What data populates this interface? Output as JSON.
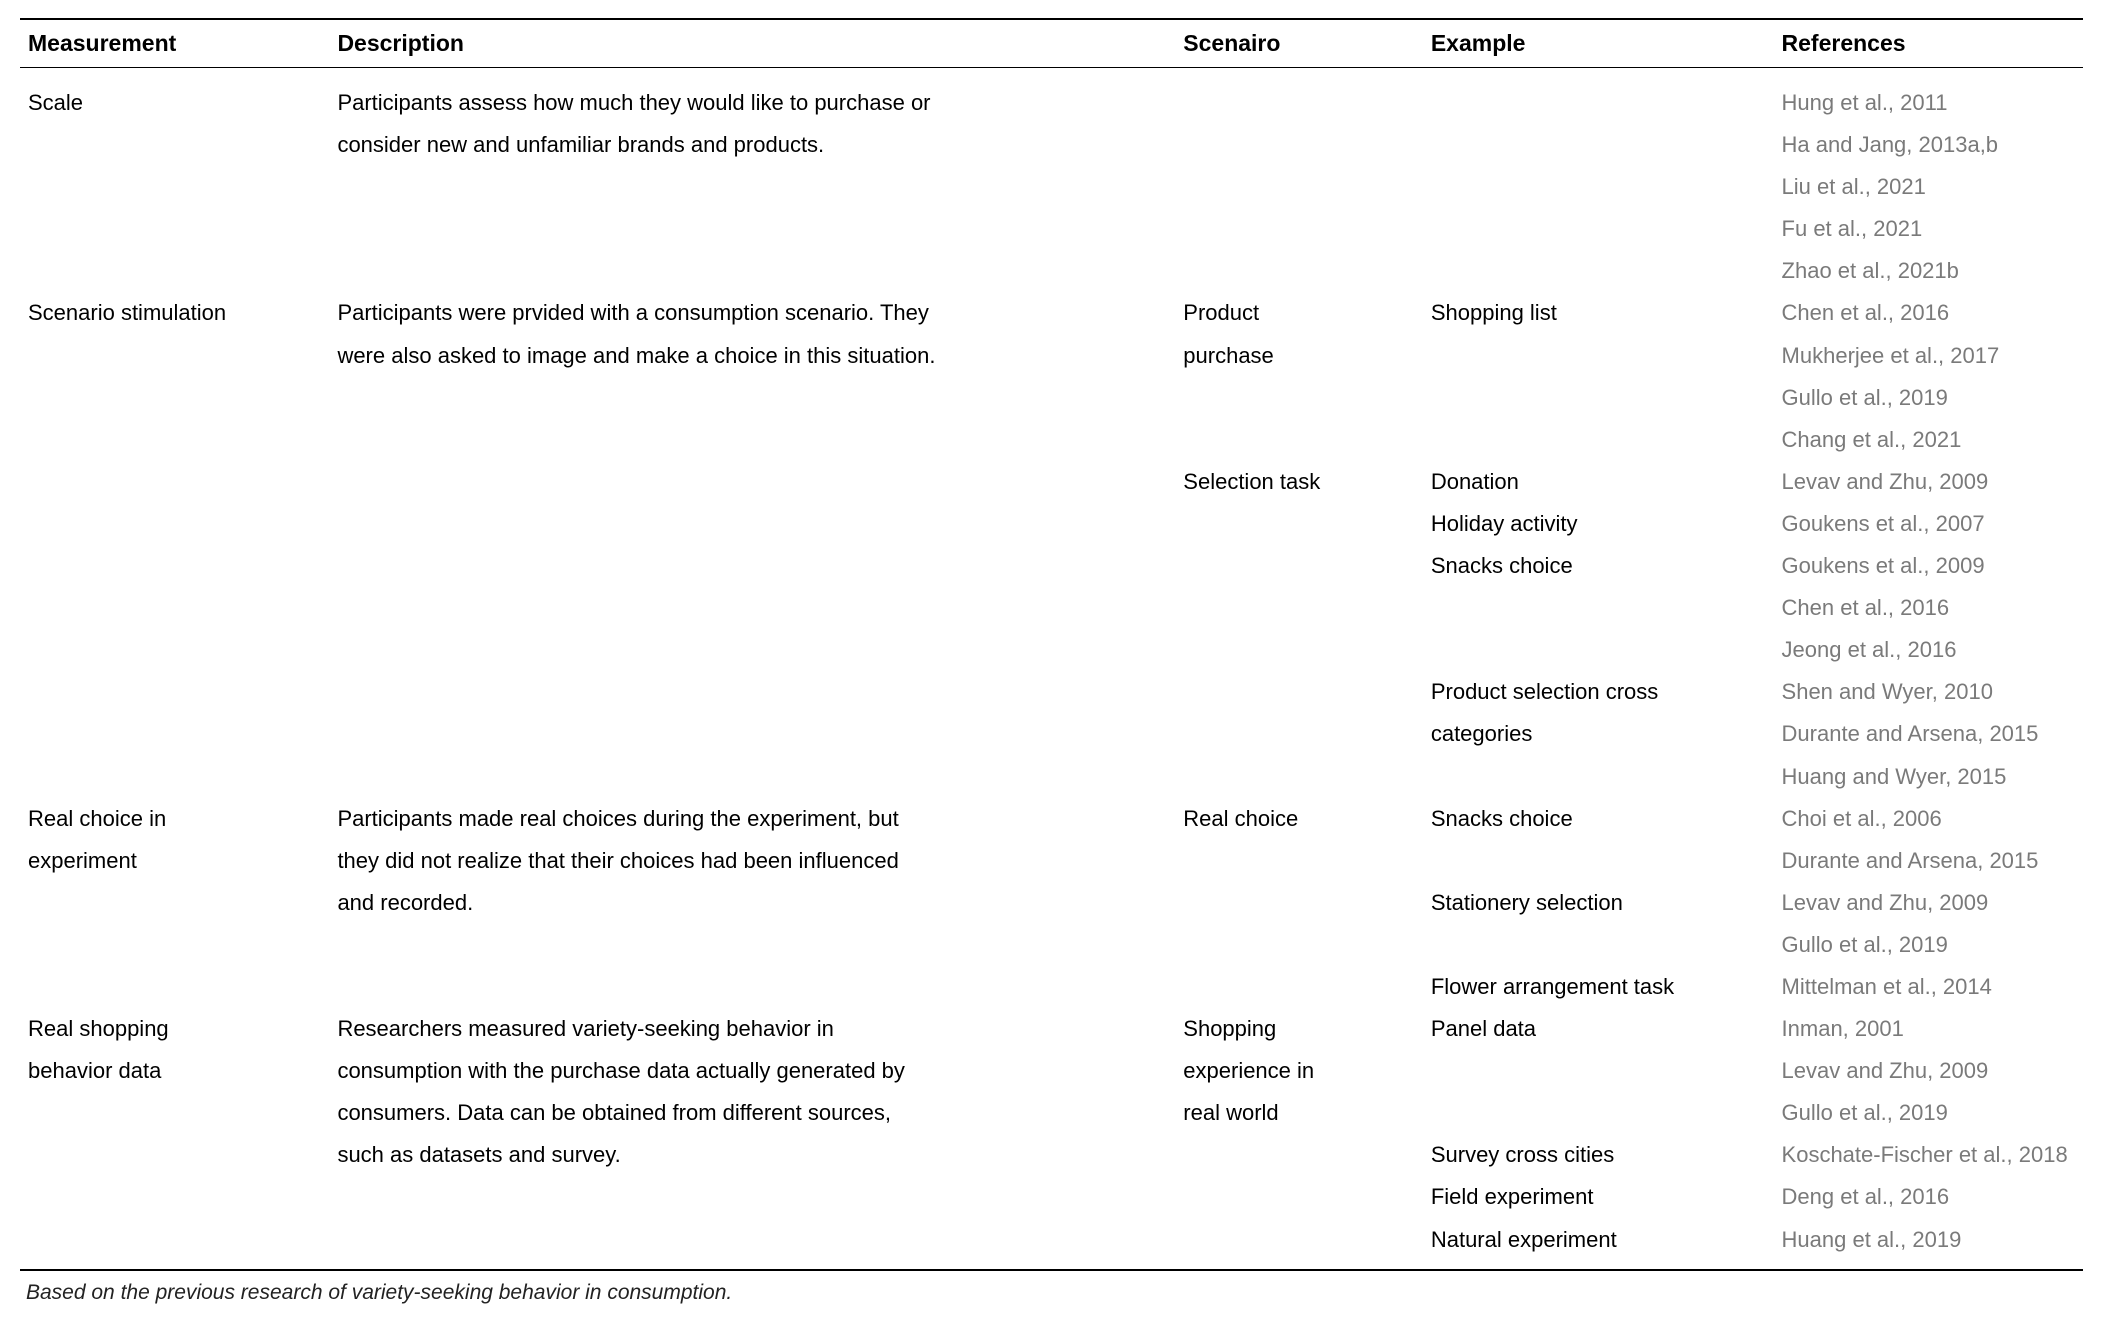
{
  "colors": {
    "text": "#000000",
    "ref": "#7a7a7a",
    "rule": "#000000",
    "background": "#ffffff"
  },
  "typography": {
    "header_fontsize_pt": 17,
    "body_fontsize_pt": 16,
    "footnote_fontsize_pt": 15,
    "font_family": "Arial"
  },
  "layout": {
    "column_width_pct": [
      15,
      41,
      12,
      17,
      15
    ]
  },
  "table": {
    "headers": {
      "measurement": "Measurement",
      "description": "Description",
      "scenario": "Scenairo",
      "example": "Example",
      "references": "References"
    },
    "rows": {
      "r1": {
        "measurement": "Scale",
        "description_l1": "Participants assess how much they would like to purchase or",
        "ref": "Hung et al., 2011"
      },
      "r2": {
        "description_l2": "consider new and unfamiliar brands and products.",
        "ref": "Ha and Jang, 2013a,b"
      },
      "r3": {
        "ref": "Liu et al., 2021"
      },
      "r4": {
        "ref": "Fu et al., 2021"
      },
      "r5": {
        "ref": "Zhao et al., 2021b"
      },
      "r6": {
        "measurement": "Scenario stimulation",
        "description_l1": "Participants were prvided with a consumption scenario. They",
        "scenario_l1": "Product",
        "example": "Shopping list",
        "ref": "Chen et al., 2016"
      },
      "r7": {
        "description_l2": "were also asked to image and make a choice in this situation.",
        "scenario_l2": "purchase",
        "ref": "Mukherjee et al., 2017"
      },
      "r8": {
        "ref": "Gullo et al., 2019"
      },
      "r9": {
        "ref": "Chang et al., 2021"
      },
      "r10": {
        "scenario": "Selection task",
        "example": "Donation",
        "ref": "Levav and Zhu, 2009"
      },
      "r11": {
        "example": "Holiday activity",
        "ref": "Goukens et al., 2007"
      },
      "r12": {
        "example": "Snacks choice",
        "ref": "Goukens et al., 2009"
      },
      "r13": {
        "ref": "Chen et al., 2016"
      },
      "r14": {
        "ref": "Jeong et al., 2016"
      },
      "r15": {
        "example_l1": "Product selection cross",
        "ref": "Shen and Wyer, 2010"
      },
      "r16": {
        "example_l2": "categories",
        "ref": "Durante and Arsena, 2015"
      },
      "r17": {
        "ref": "Huang and Wyer, 2015"
      },
      "r18": {
        "measurement_l1": "Real choice in",
        "description_l1": "Participants made real choices during the experiment, but",
        "scenario": "Real choice",
        "example": "Snacks choice",
        "ref": "Choi et al., 2006"
      },
      "r19": {
        "measurement_l2": "experiment",
        "description_l2": "they did not realize that their choices had been influenced",
        "ref": "Durante and Arsena, 2015"
      },
      "r20": {
        "description_l3": "and recorded.",
        "example": "Stationery selection",
        "ref": "Levav and Zhu, 2009"
      },
      "r21": {
        "ref": "Gullo et al., 2019"
      },
      "r22": {
        "example": "Flower arrangement task",
        "ref": "Mittelman et al., 2014"
      },
      "r23": {
        "measurement_l1": "Real shopping",
        "description_l1": "Researchers measured variety-seeking behavior in",
        "scenario_l1": "Shopping",
        "example": "Panel data",
        "ref": "Inman, 2001"
      },
      "r24": {
        "measurement_l2": "behavior data",
        "description_l2": "consumption with the purchase data actually generated by",
        "scenario_l2": "experience in",
        "ref": "Levav and Zhu, 2009"
      },
      "r25": {
        "description_l3": "consumers. Data can be obtained from different sources,",
        "scenario_l3": "real world",
        "ref": "Gullo et al., 2019"
      },
      "r26": {
        "description_l4": "such as datasets and survey.",
        "example": "Survey cross cities",
        "ref": "Koschate-Fischer et al., 2018"
      },
      "r27": {
        "example": "Field experiment",
        "ref": "Deng et al., 2016"
      },
      "r28": {
        "example": "Natural experiment",
        "ref": "Huang et al., 2019"
      }
    },
    "footnote": "Based on the previous research of variety-seeking behavior in consumption."
  }
}
